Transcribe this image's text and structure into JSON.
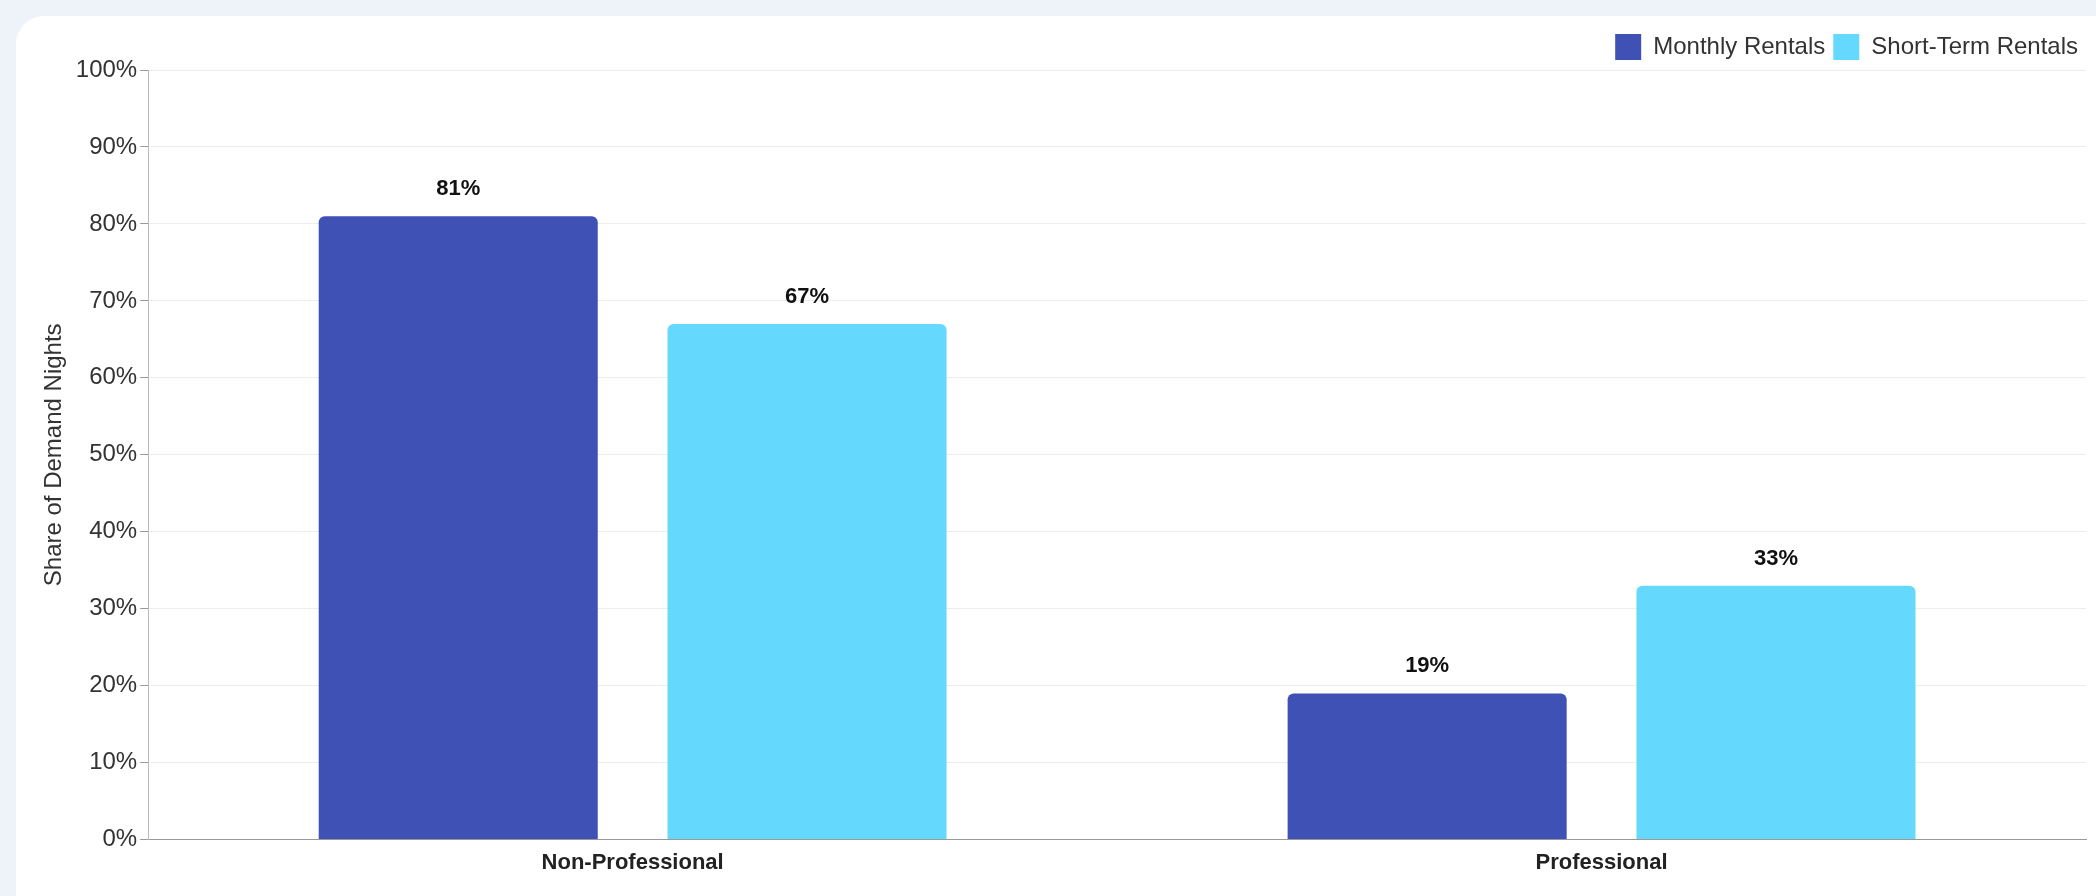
{
  "chart_data": {
    "type": "bar",
    "ylabel": "Share of Demand Nights",
    "categories": [
      "Non-Professional",
      "Professional"
    ],
    "series": [
      {
        "name": "Monthly Rentals",
        "color": "#3f51b5",
        "values": [
          81,
          19
        ],
        "value_labels": [
          "81%",
          "19%"
        ]
      },
      {
        "name": "Short-Term Rentals",
        "color": "#64d9fd",
        "values": [
          67,
          33
        ],
        "value_labels": [
          "67%",
          "33%"
        ]
      }
    ],
    "ylim": [
      0,
      100
    ],
    "yticks": [
      {
        "value": 0,
        "label": "0%"
      },
      {
        "value": 10,
        "label": "10%"
      },
      {
        "value": 20,
        "label": "20%"
      },
      {
        "value": 30,
        "label": "30%"
      },
      {
        "value": 40,
        "label": "40%"
      },
      {
        "value": 50,
        "label": "50%"
      },
      {
        "value": 60,
        "label": "60%"
      },
      {
        "value": 70,
        "label": "70%"
      },
      {
        "value": 80,
        "label": "80%"
      },
      {
        "value": 90,
        "label": "90%"
      },
      {
        "value": 100,
        "label": "100%"
      }
    ],
    "grid": "y",
    "legend": "top right"
  }
}
